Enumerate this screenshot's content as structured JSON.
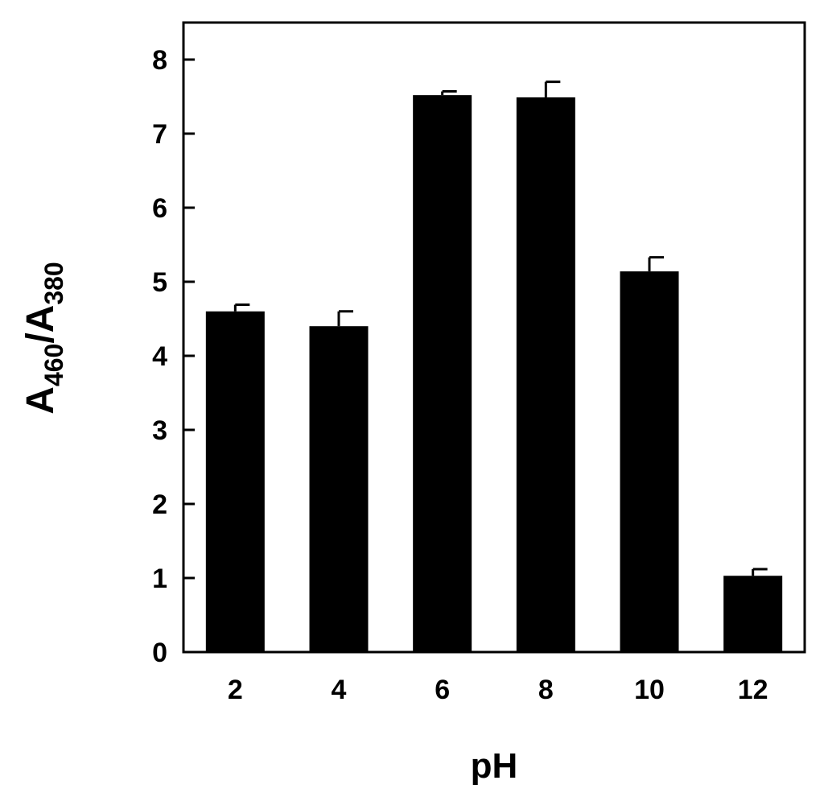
{
  "chart_data": {
    "type": "bar",
    "categories": [
      "2",
      "4",
      "6",
      "8",
      "10",
      "12"
    ],
    "values": [
      4.6,
      4.4,
      7.52,
      7.49,
      5.14,
      1.03
    ],
    "errors": [
      0.09,
      0.2,
      0.05,
      0.21,
      0.19,
      0.09
    ],
    "xlabel": "pH",
    "ylabel": {
      "main": "A",
      "sub1": "460",
      "sep": "/A",
      "sub2": "380"
    },
    "ylim": [
      0,
      8.5
    ],
    "yticks": [
      "0",
      "1",
      "2",
      "3",
      "4",
      "5",
      "6",
      "7",
      "8"
    ],
    "bar_color": "#000000",
    "grid": false,
    "legend": "none"
  }
}
